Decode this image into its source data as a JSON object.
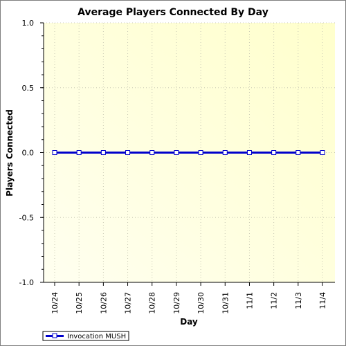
{
  "chart_data": {
    "type": "line",
    "title": "Average Players Connected By Day",
    "xlabel": "Day",
    "ylabel": "Players Connected",
    "categories": [
      "10/24",
      "10/25",
      "10/26",
      "10/27",
      "10/28",
      "10/29",
      "10/30",
      "10/31",
      "11/1",
      "11/2",
      "11/3",
      "11/4"
    ],
    "series": [
      {
        "name": "Invocation MUSH",
        "values": [
          0,
          0,
          0,
          0,
          0,
          0,
          0,
          0,
          0,
          0,
          0,
          0
        ],
        "color": "#0000cc"
      }
    ],
    "ylim": [
      -1.0,
      1.0
    ],
    "yticks": [
      "1.0",
      "0.5",
      "0.0",
      "-0.5",
      "-1.0"
    ],
    "ytick_values": [
      1.0,
      0.5,
      0.0,
      -0.5,
      -1.0
    ],
    "grid": true,
    "legend": "bottom-left",
    "background_gradient": [
      "#fffff0",
      "#ffffcc"
    ]
  }
}
